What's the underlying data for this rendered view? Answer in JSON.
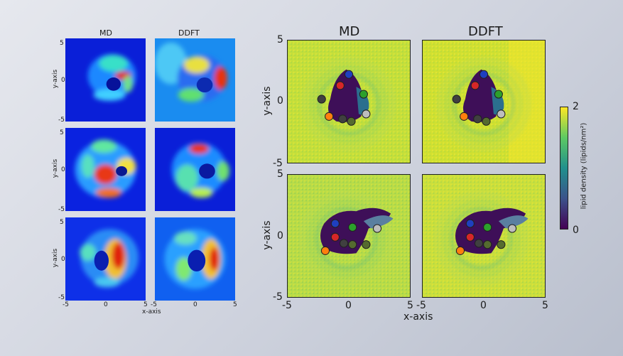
{
  "left_figure": {
    "col_titles": [
      "MD",
      "DDFT"
    ],
    "y_label": "y-axis",
    "x_label": "x-axis",
    "y_ticks": [
      "-5",
      "0",
      "5"
    ],
    "x_ticks_left": [
      "-5",
      "0",
      "5"
    ],
    "x_ticks_right": [
      "-5",
      "0",
      "5"
    ]
  },
  "right_figure": {
    "col_titles": [
      "MD",
      "DDFT"
    ],
    "y_label": "y-axis",
    "x_label": "x-axis",
    "y_ticks": [
      "5",
      "0",
      "-5"
    ],
    "x_ticks_left": [
      "-5",
      "0",
      "5"
    ],
    "x_ticks_right": [
      "-5",
      "0",
      "5"
    ]
  },
  "colorbar": {
    "label": "lipid density (lipids/nm²)",
    "max_label": "2",
    "min_label": "0",
    "colormap": "viridis"
  },
  "chart_data": [
    {
      "type": "heatmap",
      "panels": "left 3x2 grid (rows of MD / DDFT density maps)",
      "colormap": "jet",
      "xlim": [
        -5,
        5
      ],
      "ylim": [
        -5,
        5
      ],
      "grid": false
    },
    {
      "type": "heatmap",
      "panels": "right 2x2 grid (MD / DDFT lipid density with protein bead markers)",
      "colormap": "viridis",
      "xlim": [
        -5,
        5
      ],
      "ylim": [
        -5,
        5
      ],
      "clim": [
        0,
        2
      ],
      "bead_colors": [
        "#1f3fbf",
        "#d62728",
        "#2ca02c",
        "#ff7f0e",
        "#7f7f7f",
        "#bdbdbd",
        "#556b2f",
        "#404040"
      ],
      "markers": [
        {
          "panel": "top-MD",
          "points": [
            [
              0,
              2.2,
              "#1f3fbf"
            ],
            [
              -0.7,
              1.3,
              "#d62728"
            ],
            [
              1.2,
              0.6,
              "#2ca02c"
            ],
            [
              -2.2,
              0.2,
              "#404040"
            ],
            [
              -1.6,
              -1.2,
              "#ff7f0e"
            ],
            [
              1.4,
              -1.0,
              "#bdbdbd"
            ],
            [
              0.2,
              -1.6,
              "#556b2f"
            ],
            [
              -0.5,
              -1.4,
              "#404040"
            ]
          ]
        },
        {
          "panel": "top-DDFT",
          "points": [
            [
              0,
              2.2,
              "#1f3fbf"
            ],
            [
              -0.7,
              1.3,
              "#d62728"
            ],
            [
              1.2,
              0.6,
              "#2ca02c"
            ],
            [
              -2.2,
              0.2,
              "#404040"
            ],
            [
              -1.6,
              -1.2,
              "#ff7f0e"
            ],
            [
              1.4,
              -1.0,
              "#bdbdbd"
            ],
            [
              0.2,
              -1.6,
              "#556b2f"
            ],
            [
              -0.5,
              -1.4,
              "#404040"
            ]
          ]
        },
        {
          "panel": "bottom-MD",
          "points": [
            [
              -1.1,
              1.0,
              "#1f3fbf"
            ],
            [
              -1.1,
              -0.1,
              "#d62728"
            ],
            [
              0.3,
              0.7,
              "#2ca02c"
            ],
            [
              2.3,
              0.6,
              "#bdbdbd"
            ],
            [
              -1.9,
              -1.2,
              "#ff7f0e"
            ],
            [
              0.3,
              -0.7,
              "#556b2f"
            ],
            [
              1.4,
              -0.7,
              "#556b2f"
            ],
            [
              -0.4,
              -0.6,
              "#404040"
            ]
          ]
        },
        {
          "panel": "bottom-DDFT",
          "points": [
            [
              -1.1,
              1.0,
              "#1f3fbf"
            ],
            [
              -1.1,
              -0.1,
              "#d62728"
            ],
            [
              0.3,
              0.7,
              "#2ca02c"
            ],
            [
              2.3,
              0.6,
              "#bdbdbd"
            ],
            [
              -1.9,
              -1.2,
              "#ff7f0e"
            ],
            [
              0.3,
              -0.7,
              "#556b2f"
            ],
            [
              1.4,
              -0.7,
              "#556b2f"
            ],
            [
              -0.4,
              -0.6,
              "#404040"
            ]
          ]
        }
      ]
    }
  ]
}
